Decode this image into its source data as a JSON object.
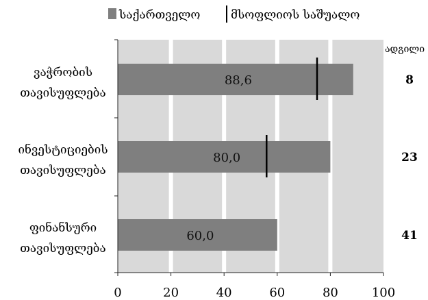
{
  "chart_data": {
    "type": "bar",
    "orientation": "horizontal",
    "legend": {
      "position": "top",
      "georgia_label": "საქართველო",
      "average_label": "მსოფლიოს საშუალო"
    },
    "rank_header": "ადგილი",
    "categories": [
      [
        "ვაჭრობის",
        "თავისუფლება"
      ],
      [
        "ინვესტიციების",
        "თავისუფლება"
      ],
      [
        "ფინანსური",
        "თავისუფლება"
      ]
    ],
    "series": [
      {
        "name": "საქართველო",
        "values": [
          88.6,
          80.0,
          60.0
        ],
        "color": "#7f7f7f"
      },
      {
        "name": "მსოფლიოს საშუალო",
        "values": [
          75,
          56,
          null
        ],
        "color": "#000000"
      }
    ],
    "value_labels": [
      "88,6",
      "80,0",
      "60,0"
    ],
    "ranks": [
      "8",
      "23",
      "41"
    ],
    "x_ticks": [
      "0",
      "20",
      "40",
      "60",
      "80",
      "100"
    ],
    "xlim": [
      0,
      100
    ],
    "grid": true,
    "band_color": "#d9d9d9"
  }
}
